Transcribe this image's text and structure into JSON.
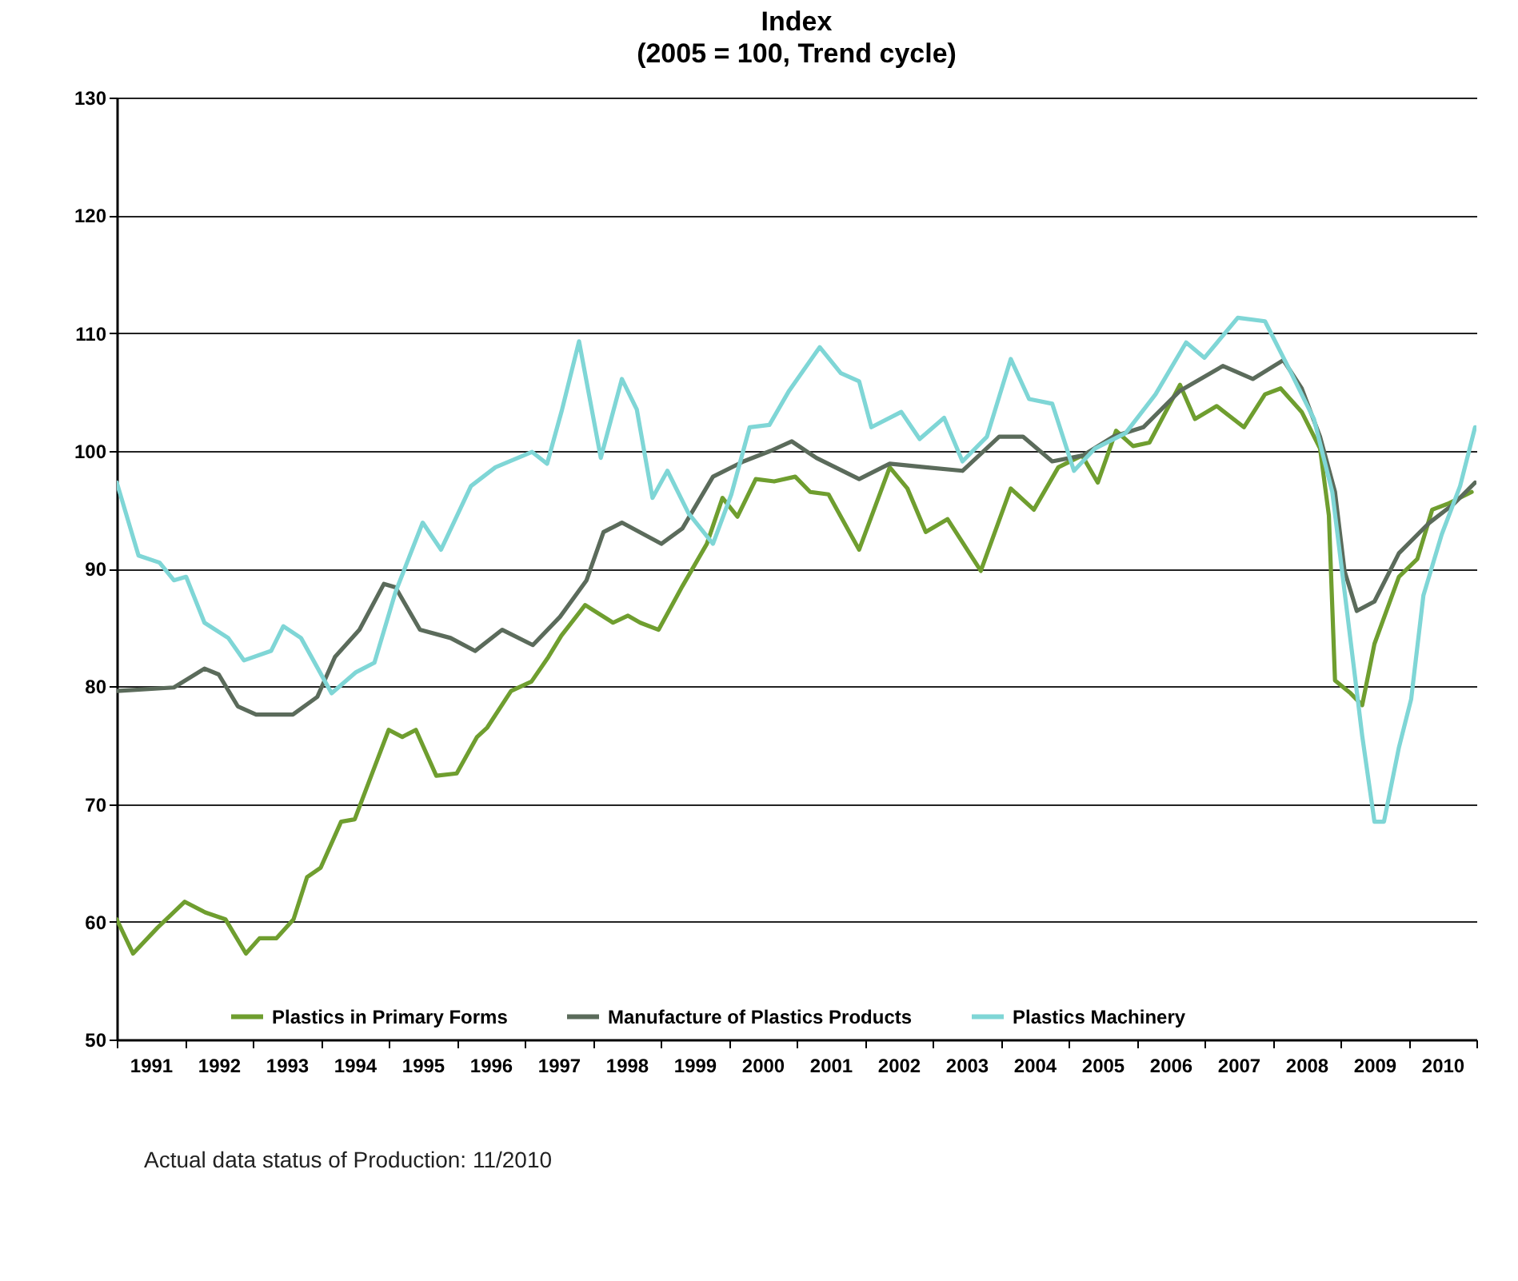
{
  "chart_data": {
    "type": "line",
    "title": "Index",
    "subtitle": "(2005 = 100, Trend cycle)",
    "xlim": [
      1991,
      2011
    ],
    "xticks": [
      {
        "value": 1991,
        "label": null
      },
      {
        "value": 1991.5,
        "label": "1991"
      },
      {
        "value": 1992,
        "label": null
      },
      {
        "value": 1992.5,
        "label": "1992"
      },
      {
        "value": 1993,
        "label": null
      },
      {
        "value": 1993.5,
        "label": "1993"
      },
      {
        "value": 1994,
        "label": null
      },
      {
        "value": 1994.5,
        "label": "1994"
      },
      {
        "value": 1995,
        "label": null
      },
      {
        "value": 1995.5,
        "label": "1995"
      },
      {
        "value": 1996,
        "label": null
      },
      {
        "value": 1996.5,
        "label": "1996"
      },
      {
        "value": 1997,
        "label": null
      },
      {
        "value": 1997.5,
        "label": "1997"
      },
      {
        "value": 1998,
        "label": null
      },
      {
        "value": 1998.5,
        "label": "1998"
      },
      {
        "value": 1999,
        "label": null
      },
      {
        "value": 1999.5,
        "label": "1999"
      },
      {
        "value": 2000,
        "label": null
      },
      {
        "value": 2000.5,
        "label": "2000"
      },
      {
        "value": 2001,
        "label": null
      },
      {
        "value": 2001.5,
        "label": "2001"
      },
      {
        "value": 2002,
        "label": null
      },
      {
        "value": 2002.5,
        "label": "2002"
      },
      {
        "value": 2003,
        "label": null
      },
      {
        "value": 2003.5,
        "label": "2003"
      },
      {
        "value": 2004,
        "label": null
      },
      {
        "value": 2004.5,
        "label": "2004"
      },
      {
        "value": 2005,
        "label": null
      },
      {
        "value": 2005.5,
        "label": "2005"
      },
      {
        "value": 2006,
        "label": null
      },
      {
        "value": 2006.5,
        "label": "2006"
      },
      {
        "value": 2007,
        "label": null
      },
      {
        "value": 2007.5,
        "label": "2007"
      },
      {
        "value": 2008,
        "label": null
      },
      {
        "value": 2008.5,
        "label": "2008"
      },
      {
        "value": 2009,
        "label": null
      },
      {
        "value": 2009.5,
        "label": "2009"
      },
      {
        "value": 2010,
        "label": null
      },
      {
        "value": 2010.5,
        "label": "2010"
      },
      {
        "value": 2011,
        "label": null
      }
    ],
    "ylim": [
      50,
      130
    ],
    "yticks": [
      50,
      60,
      70,
      80,
      90,
      100,
      110,
      120,
      130
    ],
    "grid": "y",
    "legend": "bottom",
    "annotations": [
      "Actual data status of Production: 11/2010"
    ],
    "series": [
      {
        "name": "Plastics in Primary Forms",
        "color": "#6f9e2f",
        "x": [
          1991.0,
          1991.24,
          1991.6,
          1992.0,
          1992.3,
          1992.6,
          1992.9,
          1993.1,
          1993.35,
          1993.6,
          1993.8,
          1994.0,
          1994.3,
          1994.5,
          1994.75,
          1995.0,
          1995.2,
          1995.4,
          1995.7,
          1996.0,
          1996.3,
          1996.45,
          1996.8,
          1997.1,
          1997.35,
          1997.54,
          1997.89,
          1998.3,
          1998.52,
          1998.7,
          1998.97,
          1999.32,
          1999.68,
          1999.91,
          2000.13,
          2000.4,
          2000.67,
          2000.98,
          2001.2,
          2001.47,
          2001.92,
          2002.37,
          2002.63,
          2002.9,
          2003.22,
          2003.71,
          2004.15,
          2004.49,
          2004.85,
          2005.2,
          2005.43,
          2005.7,
          2005.95,
          2006.19,
          2006.64,
          2006.86,
          2007.18,
          2007.58,
          2007.89,
          2008.12,
          2008.43,
          2008.7,
          2008.83,
          2008.92,
          2009.15,
          2009.32,
          2009.5,
          2009.86,
          2010.13,
          2010.35,
          2010.58,
          2010.93
        ],
        "values": [
          60.2,
          57.3,
          59.5,
          61.7,
          60.8,
          60.2,
          57.3,
          58.6,
          58.6,
          60.2,
          63.8,
          64.6,
          68.5,
          68.7,
          72.5,
          76.3,
          75.7,
          76.3,
          72.4,
          72.6,
          75.7,
          76.5,
          79.6,
          80.4,
          82.5,
          84.3,
          86.9,
          85.4,
          86.0,
          85.4,
          84.8,
          88.5,
          92.1,
          96.0,
          94.4,
          97.6,
          97.4,
          97.8,
          96.5,
          96.3,
          91.6,
          98.6,
          96.8,
          93.1,
          94.2,
          89.8,
          96.8,
          95.0,
          98.6,
          99.6,
          97.3,
          101.7,
          100.4,
          100.7,
          105.6,
          102.7,
          103.8,
          102.0,
          104.8,
          105.3,
          103.3,
          100.2,
          94.5,
          80.5,
          79.4,
          78.4,
          83.6,
          89.3,
          90.8,
          95.0,
          95.5,
          96.5
        ]
      },
      {
        "name": "Manufacture of Plastics Products",
        "color": "#5b6b5b",
        "x": [
          1991.0,
          1991.84,
          1992.29,
          1992.5,
          1992.78,
          1993.05,
          1993.59,
          1993.95,
          1994.21,
          1994.57,
          1994.93,
          1995.1,
          1995.46,
          1995.91,
          1996.27,
          1996.67,
          1997.12,
          1997.52,
          1997.91,
          1998.16,
          1998.43,
          1999.01,
          1999.32,
          1999.77,
          2000.22,
          2000.62,
          2000.93,
          2001.29,
          2001.92,
          2002.37,
          2002.9,
          2003.44,
          2003.98,
          2004.33,
          2004.76,
          2005.21,
          2005.66,
          2006.1,
          2006.64,
          2007.27,
          2007.71,
          2008.16,
          2008.43,
          2008.7,
          2008.92,
          2009.06,
          2009.24,
          2009.5,
          2009.86,
          2010.31,
          2010.67,
          2010.98
        ],
        "values": [
          79.6,
          79.9,
          81.5,
          81.0,
          78.3,
          77.6,
          77.6,
          79.1,
          82.5,
          84.8,
          88.7,
          88.4,
          84.8,
          84.1,
          83.0,
          84.8,
          83.5,
          85.9,
          89.0,
          93.1,
          93.9,
          92.1,
          93.4,
          97.8,
          99.1,
          100.0,
          100.8,
          99.4,
          97.6,
          98.9,
          98.6,
          98.3,
          101.2,
          101.2,
          99.1,
          99.6,
          101.2,
          102.0,
          105.1,
          107.2,
          106.1,
          107.7,
          105.3,
          101.2,
          96.5,
          89.8,
          86.4,
          87.2,
          91.3,
          93.9,
          95.5,
          97.3
        ]
      },
      {
        "name": "Plastics Machinery",
        "color": "#7fd6d6",
        "x": [
          1991.0,
          1991.32,
          1991.63,
          1991.84,
          1992.02,
          1992.29,
          1992.64,
          1992.87,
          1993.27,
          1993.45,
          1993.71,
          1994.16,
          1994.52,
          1994.79,
          1995.1,
          1995.5,
          1995.77,
          1996.21,
          1996.57,
          1997.11,
          1997.33,
          1997.55,
          1997.8,
          1998.12,
          1998.43,
          1998.65,
          1998.88,
          1999.1,
          1999.41,
          1999.77,
          2000.04,
          2000.31,
          2000.6,
          2000.89,
          2001.34,
          2001.65,
          2001.92,
          2002.1,
          2002.54,
          2002.81,
          2003.17,
          2003.44,
          2003.8,
          2004.15,
          2004.42,
          2004.76,
          2005.08,
          2005.39,
          2005.84,
          2006.28,
          2006.73,
          2007.0,
          2007.49,
          2007.89,
          2008.25,
          2008.61,
          2008.88,
          2009.1,
          2009.32,
          2009.5,
          2009.64,
          2009.86,
          2010.04,
          2010.22,
          2010.49,
          2010.76,
          2010.98
        ],
        "values": [
          97.3,
          91.1,
          90.5,
          89.0,
          89.3,
          85.4,
          84.1,
          82.2,
          83.0,
          85.1,
          84.1,
          79.4,
          81.2,
          82.0,
          88.0,
          93.9,
          91.6,
          97.0,
          98.6,
          99.9,
          98.9,
          103.5,
          109.3,
          99.4,
          106.1,
          103.5,
          96.0,
          98.3,
          94.7,
          92.1,
          96.3,
          102.0,
          102.2,
          105.1,
          108.8,
          106.6,
          105.9,
          102.0,
          103.3,
          101.0,
          102.8,
          99.1,
          101.2,
          107.8,
          104.4,
          104.0,
          98.3,
          100.2,
          101.5,
          104.8,
          109.2,
          107.9,
          111.3,
          111.0,
          106.9,
          102.7,
          96.5,
          86.2,
          75.8,
          68.5,
          68.5,
          74.8,
          78.9,
          87.7,
          92.9,
          97.0,
          102.0
        ]
      }
    ]
  }
}
